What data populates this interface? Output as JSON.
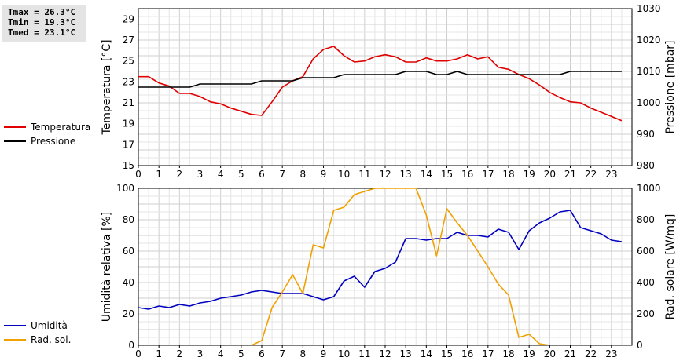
{
  "stats": {
    "tmax": "Tmax = 26.3°C",
    "tmin": "Tmin = 19.3°C",
    "tmed": "Tmed = 23.1°C"
  },
  "legend_top": [
    {
      "label": "Temperatura",
      "color": "#e00000"
    },
    {
      "label": "Pressione",
      "color": "#000000"
    }
  ],
  "legend_bottom": [
    {
      "label": "Umidità",
      "color": "#0000c0"
    },
    {
      "label": "Rad. sol.",
      "color": "#f0a000"
    }
  ],
  "chart_data": [
    {
      "type": "line",
      "grid": true,
      "xlim": [
        0,
        24
      ],
      "xticks": [
        "0",
        "1",
        "2",
        "3",
        "4",
        "5",
        "6",
        "7",
        "8",
        "9",
        "10",
        "11",
        "12",
        "13",
        "14",
        "15",
        "16",
        "17",
        "18",
        "19",
        "20",
        "21",
        "22",
        "23"
      ],
      "ylabel": "Temperatura [°C]",
      "ylim": [
        15,
        30
      ],
      "yticks": [
        "15",
        "17",
        "19",
        "21",
        "23",
        "25",
        "27",
        "29"
      ],
      "y2label": "Pressione [mbar]",
      "y2lim": [
        980,
        1030
      ],
      "y2ticks": [
        "980",
        "990",
        "1000",
        "1010",
        "1020",
        "1030"
      ],
      "series": [
        {
          "name": "Temperatura",
          "axis": "left",
          "color": "#e00000",
          "x": [
            0,
            0.5,
            1,
            1.5,
            2,
            2.5,
            3,
            3.5,
            4,
            4.5,
            5,
            5.5,
            6,
            6.5,
            7,
            7.5,
            8,
            8.5,
            9,
            9.5,
            10,
            10.5,
            11,
            11.5,
            12,
            12.5,
            13,
            13.5,
            14,
            14.5,
            15,
            15.5,
            16,
            16.5,
            17,
            17.5,
            18,
            18.5,
            19,
            19.5,
            20,
            20.5,
            21,
            21.5,
            22,
            22.5,
            23,
            23.5
          ],
          "y": [
            23.5,
            23.5,
            22.9,
            22.6,
            21.9,
            21.9,
            21.6,
            21.1,
            20.9,
            20.5,
            20.2,
            19.9,
            19.8,
            21.1,
            22.5,
            23.1,
            23.5,
            25.2,
            26.1,
            26.4,
            25.5,
            24.9,
            25,
            25.4,
            25.6,
            25.4,
            24.9,
            24.9,
            25.3,
            25,
            25,
            25.2,
            25.6,
            25.2,
            25.4,
            24.4,
            24.2,
            23.7,
            23.3,
            22.7,
            22,
            21.5,
            21.1,
            21,
            20.5,
            20.1,
            19.7,
            19.3
          ]
        },
        {
          "name": "Pressione",
          "axis": "right",
          "color": "#000000",
          "x": [
            0,
            0.5,
            1,
            1.5,
            2,
            2.5,
            3,
            3.5,
            4,
            4.5,
            5,
            5.5,
            6,
            6.5,
            7,
            7.5,
            8,
            8.5,
            9,
            9.5,
            10,
            10.5,
            11,
            11.5,
            12,
            12.5,
            13,
            13.5,
            14,
            14.5,
            15,
            15.5,
            16,
            16.5,
            17,
            17.5,
            18,
            18.5,
            19,
            19.5,
            20,
            20.5,
            21,
            21.5,
            22,
            22.5,
            23,
            23.5
          ],
          "y": [
            1005,
            1005,
            1005,
            1005,
            1005,
            1005,
            1006,
            1006,
            1006,
            1006,
            1006,
            1006,
            1007,
            1007,
            1007,
            1007,
            1008,
            1008,
            1008,
            1008,
            1009,
            1009,
            1009,
            1009,
            1009,
            1009,
            1010,
            1010,
            1010,
            1009,
            1009,
            1010,
            1009,
            1009,
            1009,
            1009,
            1009,
            1009,
            1009,
            1009,
            1009,
            1009,
            1010,
            1010,
            1010,
            1010,
            1010,
            1010
          ]
        }
      ]
    },
    {
      "type": "line",
      "grid": true,
      "xlim": [
        0,
        24
      ],
      "xticks": [
        "0",
        "1",
        "2",
        "3",
        "4",
        "5",
        "6",
        "7",
        "8",
        "9",
        "10",
        "11",
        "12",
        "13",
        "14",
        "15",
        "16",
        "17",
        "18",
        "19",
        "20",
        "21",
        "22",
        "23"
      ],
      "ylabel": "Umidità relativa [%]",
      "ylim": [
        0,
        100
      ],
      "yticks": [
        "0",
        "20",
        "40",
        "60",
        "80",
        "100"
      ],
      "y2label": "Rad. solare [W/mq]",
      "y2lim": [
        0,
        1000
      ],
      "y2ticks": [
        "0",
        "200",
        "400",
        "600",
        "800",
        "1000"
      ],
      "series": [
        {
          "name": "Umidità",
          "axis": "left",
          "color": "#0000c0",
          "x": [
            0,
            0.5,
            1,
            1.5,
            2,
            2.5,
            3,
            3.5,
            4,
            4.5,
            5,
            5.5,
            6,
            6.5,
            7,
            7.5,
            8,
            8.5,
            9,
            9.5,
            10,
            10.5,
            11,
            11.5,
            12,
            12.5,
            13,
            13.5,
            14,
            14.5,
            15,
            15.5,
            16,
            16.5,
            17,
            17.5,
            18,
            18.5,
            19,
            19.5,
            20,
            20.5,
            21,
            21.5,
            22,
            22.5,
            23,
            23.5
          ],
          "y": [
            24,
            23,
            25,
            24,
            26,
            25,
            27,
            28,
            30,
            31,
            32,
            34,
            35,
            34,
            33,
            33,
            33,
            31,
            29,
            31,
            41,
            44,
            37,
            47,
            49,
            53,
            68,
            68,
            67,
            68,
            68,
            72,
            70,
            70,
            69,
            74,
            72,
            61,
            73,
            78,
            81,
            85,
            86,
            75,
            73,
            71,
            67,
            66
          ]
        },
        {
          "name": "Rad. sol.",
          "axis": "right",
          "color": "#f0a000",
          "x": [
            0,
            0.5,
            1,
            1.5,
            2,
            2.5,
            3,
            3.5,
            4,
            4.5,
            5,
            5.5,
            6,
            6.5,
            7,
            7.5,
            8,
            8.5,
            9,
            9.5,
            10,
            10.5,
            11,
            11.5,
            12,
            12.5,
            13,
            13.5,
            14,
            14.5,
            15,
            15.5,
            16,
            16.5,
            17,
            17.5,
            18,
            18.5,
            19,
            19.5,
            20,
            20.5,
            21,
            21.5,
            22,
            22.5,
            23,
            23.5
          ],
          "y": [
            0,
            0,
            0,
            0,
            0,
            0,
            0,
            0,
            0,
            0,
            0,
            0,
            30,
            240,
            340,
            450,
            330,
            640,
            620,
            860,
            880,
            960,
            980,
            1000,
            1000,
            1000,
            1000,
            1000,
            830,
            570,
            870,
            780,
            700,
            600,
            500,
            390,
            320,
            50,
            70,
            10,
            0,
            0,
            0,
            0,
            0,
            0,
            0,
            0
          ]
        }
      ]
    }
  ]
}
